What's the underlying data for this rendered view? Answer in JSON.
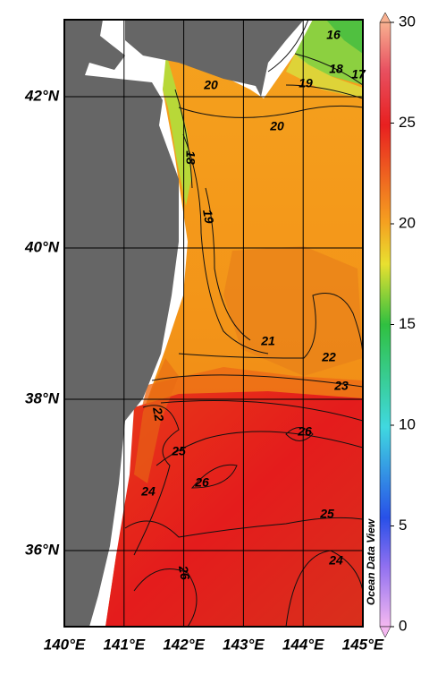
{
  "map": {
    "x_ticks": [
      {
        "value": 140,
        "label": "140°E"
      },
      {
        "value": 141,
        "label": "141°E"
      },
      {
        "value": 142,
        "label": "142°E"
      },
      {
        "value": 143,
        "label": "143°E"
      },
      {
        "value": 144,
        "label": "144°E"
      },
      {
        "value": 145,
        "label": "145°E"
      }
    ],
    "y_ticks": [
      {
        "value": 42,
        "label": "42°N"
      },
      {
        "value": 40,
        "label": "40°N"
      },
      {
        "value": 38,
        "label": "38°N"
      },
      {
        "value": 36,
        "label": "36°N"
      }
    ],
    "colorbar": {
      "lim": [
        0,
        30
      ],
      "ticks": [
        0,
        5,
        10,
        15,
        20,
        25,
        30
      ]
    },
    "contour_labels": [
      "16",
      "17",
      "18",
      "19",
      "20",
      "20",
      "18",
      "19",
      "21",
      "22",
      "23",
      "22",
      "26",
      "25",
      "26",
      "24",
      "25",
      "24",
      "26"
    ],
    "watermark": "Ocean Data View"
  }
}
